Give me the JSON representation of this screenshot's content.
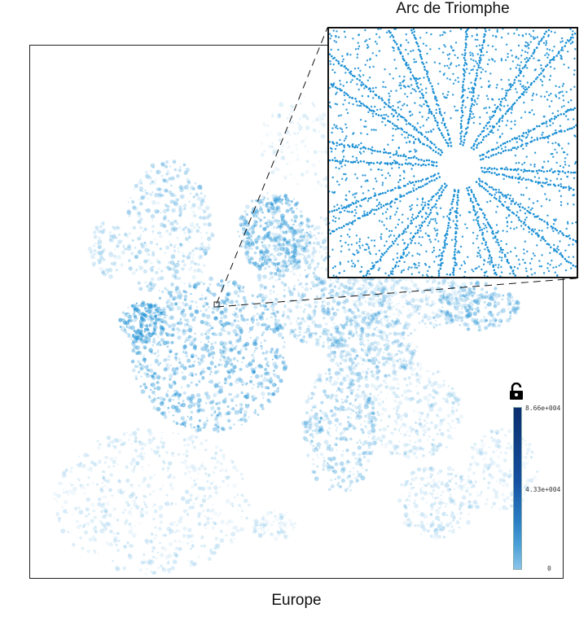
{
  "titles": {
    "inset": "Arc de Triomphe",
    "main": "Europe"
  },
  "colorbar": {
    "max_label": "8.66e+004",
    "mid_label": "4.33e+004",
    "min_label": "0",
    "colors": [
      "#0b2e6e",
      "#1550a0",
      "#2b7ec4",
      "#4aa0d8",
      "#8cc4ea"
    ]
  },
  "colors": {
    "point": "#1a8fd4",
    "point_light": "#c9e3f5"
  },
  "icons": {
    "lock": "unlocked-padlock-icon"
  }
}
